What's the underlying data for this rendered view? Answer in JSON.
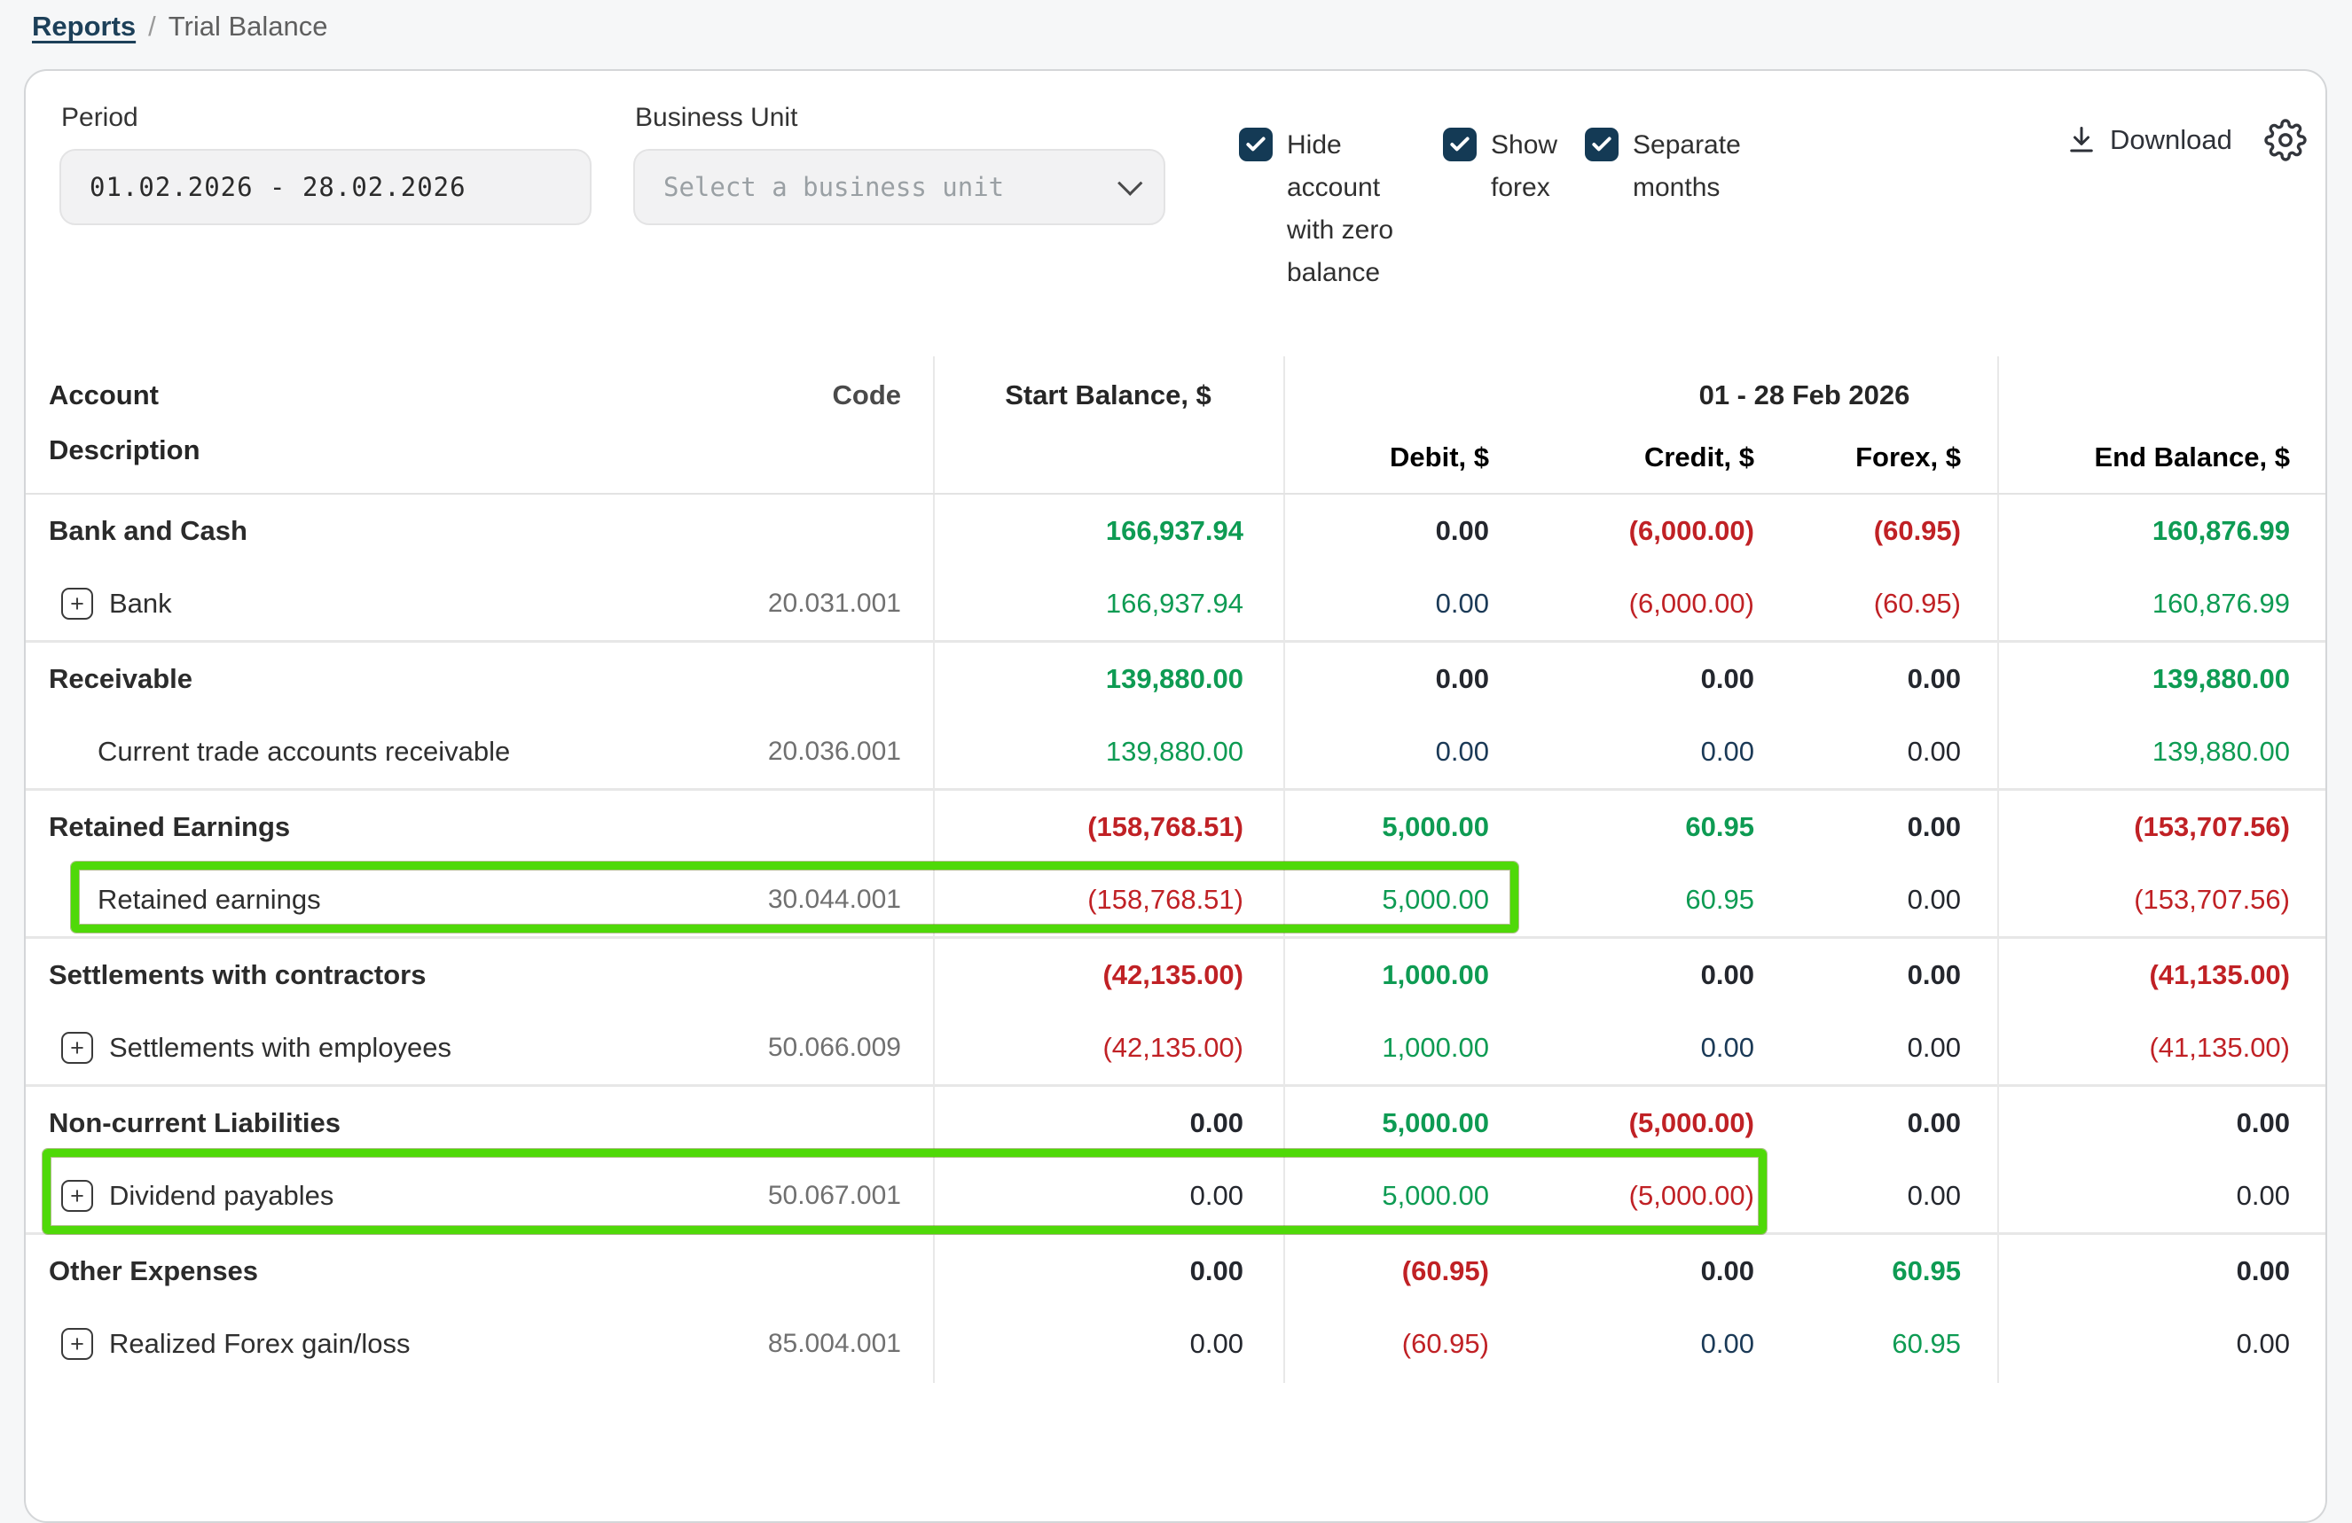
{
  "breadcrumb": {
    "reports": "Reports",
    "separator": "/",
    "current": "Trial Balance"
  },
  "filters": {
    "period": {
      "label": "Period",
      "value": "01.02.2026 - 28.02.2026"
    },
    "business_unit": {
      "label": "Business Unit",
      "placeholder": "Select a business unit"
    },
    "checkboxes": [
      {
        "label": "Hide account with zero balance",
        "checked": true
      },
      {
        "label": "Show forex",
        "checked": true
      },
      {
        "label": "Separate months",
        "checked": true
      }
    ],
    "download_label": "Download"
  },
  "colors": {
    "positive": "#0e9b53",
    "negative": "#c02125",
    "neutral": "#24272e",
    "link": "#1b3a57",
    "checkbox": "#143a55",
    "highlight": "#4fd908"
  },
  "table": {
    "headers": {
      "account": "Account",
      "description": "Description",
      "code": "Code",
      "start_balance": "Start Balance, $",
      "period_span": "01 - 28 Feb 2026",
      "debit": "Debit, $",
      "credit": "Credit, $",
      "forex": "Forex, $",
      "end_balance": "End Balance, $"
    },
    "groups": [
      {
        "name": "Bank and Cash",
        "cells": [
          {
            "v": "166,937.94",
            "c": "g"
          },
          {
            "v": "0.00",
            "c": "d"
          },
          {
            "v": "(6,000.00)",
            "c": "r"
          },
          {
            "v": "(60.95)",
            "c": "r"
          },
          {
            "v": "160,876.99",
            "c": "g"
          }
        ],
        "children": [
          {
            "name": "Bank",
            "code": "20.031.001",
            "expand": true,
            "highlight": false,
            "cells": [
              {
                "v": "166,937.94",
                "c": "g"
              },
              {
                "v": "0.00",
                "c": "n"
              },
              {
                "v": "(6,000.00)",
                "c": "r"
              },
              {
                "v": "(60.95)",
                "c": "r"
              },
              {
                "v": "160,876.99",
                "c": "g"
              }
            ]
          }
        ]
      },
      {
        "name": "Receivable",
        "cells": [
          {
            "v": "139,880.00",
            "c": "g"
          },
          {
            "v": "0.00",
            "c": "d"
          },
          {
            "v": "0.00",
            "c": "d"
          },
          {
            "v": "0.00",
            "c": "d"
          },
          {
            "v": "139,880.00",
            "c": "g"
          }
        ],
        "children": [
          {
            "name": "Current trade accounts receivable",
            "code": "20.036.001",
            "expand": false,
            "highlight": false,
            "cells": [
              {
                "v": "139,880.00",
                "c": "g"
              },
              {
                "v": "0.00",
                "c": "n"
              },
              {
                "v": "0.00",
                "c": "n"
              },
              {
                "v": "0.00",
                "c": "d"
              },
              {
                "v": "139,880.00",
                "c": "g"
              }
            ]
          }
        ]
      },
      {
        "name": "Retained Earnings",
        "cells": [
          {
            "v": "(158,768.51)",
            "c": "r"
          },
          {
            "v": "5,000.00",
            "c": "g"
          },
          {
            "v": "60.95",
            "c": "g"
          },
          {
            "v": "0.00",
            "c": "d"
          },
          {
            "v": "(153,707.56)",
            "c": "r"
          }
        ],
        "children": [
          {
            "name": "Retained earnings",
            "code": "30.044.001",
            "expand": false,
            "highlight": true,
            "cells": [
              {
                "v": "(158,768.51)",
                "c": "r"
              },
              {
                "v": "5,000.00",
                "c": "g"
              },
              {
                "v": "60.95",
                "c": "g"
              },
              {
                "v": "0.00",
                "c": "d"
              },
              {
                "v": "(153,707.56)",
                "c": "r"
              }
            ]
          }
        ]
      },
      {
        "name": "Settlements with contractors",
        "cells": [
          {
            "v": "(42,135.00)",
            "c": "r"
          },
          {
            "v": "1,000.00",
            "c": "g"
          },
          {
            "v": "0.00",
            "c": "d"
          },
          {
            "v": "0.00",
            "c": "d"
          },
          {
            "v": "(41,135.00)",
            "c": "r"
          }
        ],
        "children": [
          {
            "name": "Settlements with employees",
            "code": "50.066.009",
            "expand": true,
            "highlight": false,
            "cells": [
              {
                "v": "(42,135.00)",
                "c": "r"
              },
              {
                "v": "1,000.00",
                "c": "g"
              },
              {
                "v": "0.00",
                "c": "n"
              },
              {
                "v": "0.00",
                "c": "d"
              },
              {
                "v": "(41,135.00)",
                "c": "r"
              }
            ]
          }
        ]
      },
      {
        "name": "Non-current Liabilities",
        "cells": [
          {
            "v": "0.00",
            "c": "d"
          },
          {
            "v": "5,000.00",
            "c": "g"
          },
          {
            "v": "(5,000.00)",
            "c": "r"
          },
          {
            "v": "0.00",
            "c": "d"
          },
          {
            "v": "0.00",
            "c": "d"
          }
        ],
        "children": [
          {
            "name": "Dividend payables",
            "code": "50.067.001",
            "expand": true,
            "highlight": true,
            "cells": [
              {
                "v": "0.00",
                "c": "d"
              },
              {
                "v": "5,000.00",
                "c": "g"
              },
              {
                "v": "(5,000.00)",
                "c": "r"
              },
              {
                "v": "0.00",
                "c": "d"
              },
              {
                "v": "0.00",
                "c": "d"
              }
            ]
          }
        ]
      },
      {
        "name": "Other Expenses",
        "cells": [
          {
            "v": "0.00",
            "c": "d"
          },
          {
            "v": "(60.95)",
            "c": "r"
          },
          {
            "v": "0.00",
            "c": "d"
          },
          {
            "v": "60.95",
            "c": "g"
          },
          {
            "v": "0.00",
            "c": "d"
          }
        ],
        "children": [
          {
            "name": "Realized Forex gain/loss",
            "code": "85.004.001",
            "expand": true,
            "highlight": false,
            "cells": [
              {
                "v": "0.00",
                "c": "d"
              },
              {
                "v": "(60.95)",
                "c": "r"
              },
              {
                "v": "0.00",
                "c": "n"
              },
              {
                "v": "60.95",
                "c": "g"
              },
              {
                "v": "0.00",
                "c": "d"
              }
            ]
          }
        ]
      }
    ]
  }
}
